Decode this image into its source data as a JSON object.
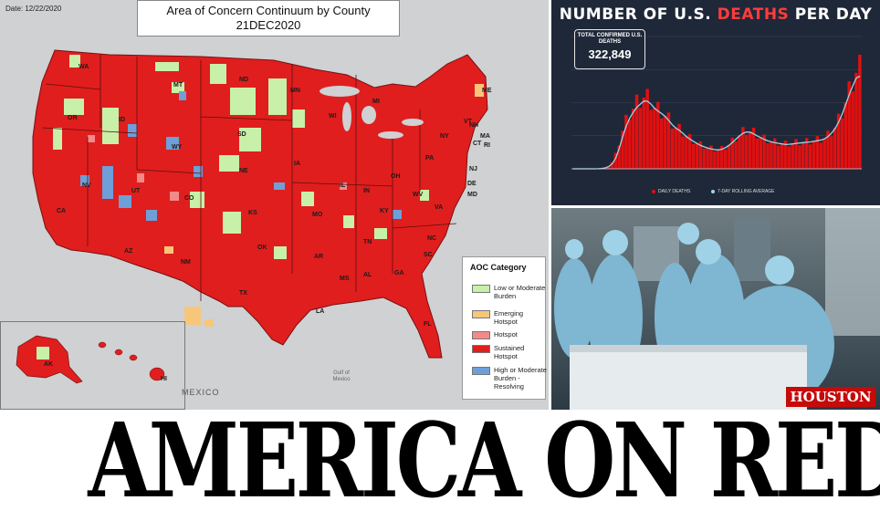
{
  "map": {
    "date_label": "Date: 12/22/2020",
    "title_line1": "Area of Concern Continuum by County",
    "title_line2": "21DEC2020",
    "mexico_label": "MEXICO",
    "gulf_label": "Gulf of Mexico",
    "state_labels": [
      "WA",
      "OR",
      "ID",
      "MT",
      "ND",
      "MN",
      "WI",
      "MI",
      "NY",
      "ME",
      "VT",
      "NH",
      "MA",
      "CT",
      "RI",
      "NJ",
      "DE",
      "MD",
      "PA",
      "OH",
      "IN",
      "IL",
      "IA",
      "NE",
      "SD",
      "WY",
      "NV",
      "UT",
      "CO",
      "KS",
      "MO",
      "KY",
      "WV",
      "VA",
      "NC",
      "TN",
      "AR",
      "OK",
      "TX",
      "NM",
      "AZ",
      "CA",
      "LA",
      "MS",
      "AL",
      "GA",
      "SC",
      "FL",
      "AK",
      "HI"
    ],
    "legend": {
      "title": "AOC Category",
      "items": [
        {
          "label": "Low or Moderate Burden",
          "color": "#c8f0a8"
        },
        {
          "label": "Emerging Hotspot",
          "color": "#f7c67a"
        },
        {
          "label": "Hotspot",
          "color": "#f28a8a"
        },
        {
          "label": "Sustained Hotspot",
          "color": "#e01e1e"
        },
        {
          "label": "High or Moderate Burden - Resolving",
          "color": "#6e9fd8"
        }
      ]
    }
  },
  "deaths_chart": {
    "headline_part1": "NUMBER OF U.S. ",
    "headline_red": "DEATHS",
    "headline_part2": " PER DAY",
    "total_label": "TOTAL CONFIRMED U.S. DEATHS",
    "total_value": "322,849",
    "legend_daily": "DAILY DEATHS",
    "legend_avg": "7-DAY ROLLING AVERAGE",
    "colors": {
      "background": "#1f2838",
      "bars": "#e01010",
      "average": "#9fd3ea"
    }
  },
  "chart_data": {
    "type": "bar",
    "title": "NUMBER OF U.S. DEATHS PER DAY",
    "series": [
      {
        "name": "DAILY DEATHS",
        "values": [
          0,
          0,
          0,
          0,
          0,
          1,
          2,
          5,
          12,
          40,
          90,
          200,
          420,
          780,
          1150,
          1420,
          1650,
          1820,
          1950,
          2050,
          2150,
          2100,
          1980,
          1850,
          1760,
          1690,
          1600,
          1480,
          1350,
          1250,
          1180,
          1090,
          990,
          910,
          840,
          780,
          720,
          680,
          640,
          610,
          590,
          580,
          600,
          650,
          720,
          820,
          920,
          1020,
          1100,
          1140,
          1130,
          1080,
          1020,
          960,
          900,
          860,
          830,
          800,
          780,
          760,
          740,
          750,
          760,
          780,
          790,
          800,
          810,
          820,
          840,
          860,
          880,
          920,
          1000,
          1100,
          1250,
          1450,
          1700,
          2000,
          2300,
          2600,
          2900,
          3000
        ]
      },
      {
        "name": "7-DAY ROLLING AVERAGE",
        "values": [
          0,
          0,
          0,
          0,
          0,
          0,
          1,
          3,
          8,
          25,
          65,
          150,
          320,
          620,
          980,
          1300,
          1540,
          1720,
          1860,
          1960,
          2050,
          2040,
          1950,
          1830,
          1740,
          1670,
          1580,
          1460,
          1330,
          1230,
          1160,
          1070,
          975,
          895,
          825,
          765,
          705,
          665,
          630,
          600,
          580,
          572,
          590,
          640,
          710,
          800,
          900,
          995,
          1075,
          1115,
          1105,
          1055,
          995,
          940,
          885,
          845,
          815,
          790,
          770,
          752,
          735,
          743,
          752,
          770,
          782,
          792,
          802,
          812,
          830,
          850,
          870,
          905,
          980,
          1080,
          1220,
          1420,
          1660,
          1950,
          2250,
          2520,
          2750,
          2800
        ]
      }
    ],
    "ylim": [
      0,
      4000
    ]
  },
  "photo": {
    "badge": "HOUSTON"
  },
  "headline": "AMERICA ON RED ALERT"
}
